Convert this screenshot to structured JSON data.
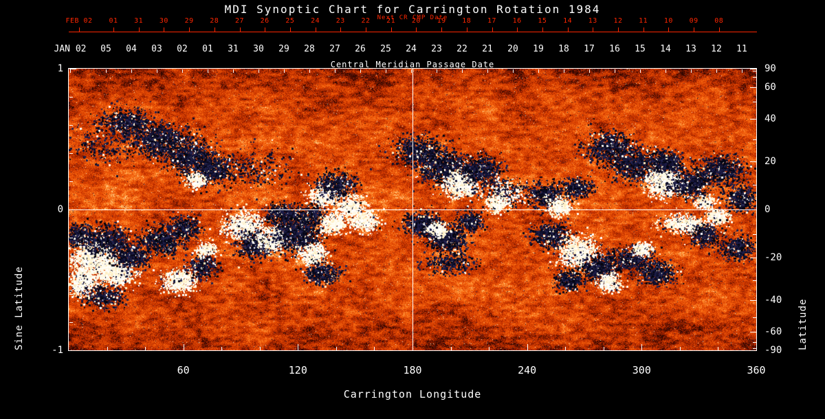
{
  "chart_data": {
    "type": "heatmap",
    "title": "MDI Synoptic Chart for Carrington Rotation 1984",
    "colors": {
      "red_axis": "#ff2600",
      "foreground": "#ffffff",
      "background": "#000000",
      "palette_positive": "#fff0c0",
      "palette_negative": "#101038",
      "palette_quiet": "#e24602"
    },
    "top_axis_red": {
      "label": "Next CR CMP Date",
      "lead": "FEB 02",
      "ticks": [
        "01",
        "31",
        "30",
        "29",
        "28",
        "27",
        "26",
        "25",
        "24",
        "23",
        "22",
        "21",
        "20",
        "19",
        "18",
        "17",
        "16",
        "15",
        "14",
        "13",
        "12",
        "11",
        "10",
        "09",
        "08"
      ]
    },
    "top_axis_white": {
      "label": "Central Meridian Passage Date",
      "lead": "JAN 02",
      "ticks": [
        "05",
        "04",
        "03",
        "02",
        "01",
        "31",
        "30",
        "29",
        "28",
        "27",
        "26",
        "25",
        "24",
        "23",
        "22",
        "21",
        "20",
        "19",
        "18",
        "17",
        "16",
        "15",
        "14",
        "13",
        "12",
        "11"
      ]
    },
    "x_axis": {
      "label": "Carrington Longitude",
      "range": [
        0,
        360
      ],
      "major_ticks": [
        60,
        120,
        180,
        240,
        300,
        360
      ],
      "minor_tick_step": 20
    },
    "y_left": {
      "label": "Sine Latitude",
      "range": [
        -1,
        1
      ],
      "major_ticks": [
        1,
        0,
        -1
      ],
      "minor_ticks": [
        0.8,
        0.6,
        0.4,
        0.2,
        -0.2,
        -0.4,
        -0.6,
        -0.8
      ]
    },
    "y_right": {
      "label": "Latitude",
      "ticks": [
        90,
        60,
        40,
        20,
        0,
        -20,
        -40,
        -60,
        -90
      ],
      "minor_ticks": [
        80,
        70,
        50,
        30,
        10,
        -10,
        -30,
        -50,
        -70,
        -80
      ]
    },
    "crosshair": {
      "lon": 180,
      "sine_lat": 0
    },
    "active_regions": [
      {
        "lon": 30,
        "slat": 0.62,
        "sx": 18,
        "sy": 10,
        "type": "dark",
        "n": 900
      },
      {
        "lon": 47,
        "slat": 0.5,
        "sx": 22,
        "sy": 12,
        "type": "dark",
        "n": 1300
      },
      {
        "lon": 63,
        "slat": 0.38,
        "sx": 20,
        "sy": 12,
        "type": "dark",
        "n": 1200
      },
      {
        "lon": 74,
        "slat": 0.28,
        "sx": 16,
        "sy": 10,
        "type": "dark",
        "n": 850
      },
      {
        "lon": 67,
        "slat": 0.21,
        "sx": 7,
        "sy": 5,
        "type": "light",
        "n": 350
      },
      {
        "lon": 96,
        "slat": 0.3,
        "sx": 26,
        "sy": 14,
        "type": "dark",
        "n": 450
      },
      {
        "lon": 15,
        "slat": 0.45,
        "sx": 22,
        "sy": 14,
        "type": "dark",
        "n": 300
      },
      {
        "lon": 133,
        "slat": 0.1,
        "sx": 10,
        "sy": 8,
        "type": "light",
        "n": 600
      },
      {
        "lon": 147,
        "slat": 0.02,
        "sx": 12,
        "sy": 9,
        "type": "light",
        "n": 700
      },
      {
        "lon": 155,
        "slat": -0.08,
        "sx": 10,
        "sy": 8,
        "type": "light",
        "n": 600
      },
      {
        "lon": 140,
        "slat": 0.18,
        "sx": 14,
        "sy": 9,
        "type": "dark",
        "n": 700
      },
      {
        "lon": 126,
        "slat": -0.04,
        "sx": 10,
        "sy": 7,
        "type": "dark",
        "n": 450
      },
      {
        "lon": 183,
        "slat": 0.42,
        "sx": 16,
        "sy": 10,
        "type": "dark",
        "n": 950
      },
      {
        "lon": 196,
        "slat": 0.3,
        "sx": 20,
        "sy": 13,
        "type": "dark",
        "n": 1500
      },
      {
        "lon": 205,
        "slat": 0.17,
        "sx": 12,
        "sy": 9,
        "type": "light",
        "n": 1000
      },
      {
        "lon": 216,
        "slat": 0.28,
        "sx": 14,
        "sy": 10,
        "type": "dark",
        "n": 900
      },
      {
        "lon": 228,
        "slat": 0.12,
        "sx": 16,
        "sy": 10,
        "type": "mixed",
        "n": 600
      },
      {
        "lon": 224,
        "slat": 0.04,
        "sx": 8,
        "sy": 6,
        "type": "light",
        "n": 400
      },
      {
        "lon": 250,
        "slat": 0.1,
        "sx": 14,
        "sy": 9,
        "type": "dark",
        "n": 750
      },
      {
        "lon": 257,
        "slat": 0.02,
        "sx": 8,
        "sy": 6,
        "type": "light",
        "n": 450
      },
      {
        "lon": 266,
        "slat": 0.16,
        "sx": 10,
        "sy": 7,
        "type": "dark",
        "n": 500
      },
      {
        "lon": 283,
        "slat": 0.45,
        "sx": 18,
        "sy": 11,
        "type": "dark",
        "n": 950
      },
      {
        "lon": 297,
        "slat": 0.32,
        "sx": 20,
        "sy": 12,
        "type": "dark",
        "n": 1250
      },
      {
        "lon": 312,
        "slat": 0.2,
        "sx": 13,
        "sy": 10,
        "type": "light",
        "n": 1300
      },
      {
        "lon": 313,
        "slat": 0.34,
        "sx": 12,
        "sy": 8,
        "type": "dark",
        "n": 700
      },
      {
        "lon": 326,
        "slat": 0.18,
        "sx": 14,
        "sy": 10,
        "type": "dark",
        "n": 950
      },
      {
        "lon": 341,
        "slat": 0.28,
        "sx": 18,
        "sy": 11,
        "type": "dark",
        "n": 1050
      },
      {
        "lon": 352,
        "slat": 0.08,
        "sx": 12,
        "sy": 9,
        "type": "dark",
        "n": 600
      },
      {
        "lon": 333,
        "slat": 0.05,
        "sx": 7,
        "sy": 5,
        "type": "light",
        "n": 300
      },
      {
        "lon": 13,
        "slat": -0.35,
        "sx": 16,
        "sy": 13,
        "type": "light",
        "n": 1600
      },
      {
        "lon": 25,
        "slat": -0.45,
        "sx": 13,
        "sy": 10,
        "type": "light",
        "n": 1000
      },
      {
        "lon": 7,
        "slat": -0.52,
        "sx": 10,
        "sy": 9,
        "type": "light",
        "n": 700
      },
      {
        "lon": 20,
        "slat": -0.22,
        "sx": 16,
        "sy": 10,
        "type": "dark",
        "n": 950
      },
      {
        "lon": 33,
        "slat": -0.33,
        "sx": 12,
        "sy": 9,
        "type": "dark",
        "n": 700
      },
      {
        "lon": 5,
        "slat": -0.18,
        "sx": 10,
        "sy": 8,
        "type": "dark",
        "n": 500
      },
      {
        "lon": 18,
        "slat": -0.62,
        "sx": 14,
        "sy": 8,
        "type": "dark",
        "n": 500
      },
      {
        "lon": 48,
        "slat": -0.22,
        "sx": 14,
        "sy": 10,
        "type": "dark",
        "n": 800
      },
      {
        "lon": 60,
        "slat": -0.13,
        "sx": 12,
        "sy": 9,
        "type": "dark",
        "n": 600
      },
      {
        "lon": 58,
        "slat": -0.5,
        "sx": 13,
        "sy": 8,
        "type": "light",
        "n": 800
      },
      {
        "lon": 70,
        "slat": -0.4,
        "sx": 10,
        "sy": 8,
        "type": "dark",
        "n": 500
      },
      {
        "lon": 72,
        "slat": -0.28,
        "sx": 7,
        "sy": 5,
        "type": "light",
        "n": 300
      },
      {
        "lon": 92,
        "slat": -0.12,
        "sx": 15,
        "sy": 10,
        "type": "light",
        "n": 1000
      },
      {
        "lon": 98,
        "slat": -0.25,
        "sx": 14,
        "sy": 10,
        "type": "dark",
        "n": 900
      },
      {
        "lon": 108,
        "slat": -0.2,
        "sx": 12,
        "sy": 9,
        "type": "light",
        "n": 800
      },
      {
        "lon": 120,
        "slat": -0.18,
        "sx": 16,
        "sy": 12,
        "type": "dark",
        "n": 1350
      },
      {
        "lon": 128,
        "slat": -0.32,
        "sx": 10,
        "sy": 8,
        "type": "light",
        "n": 600
      },
      {
        "lon": 133,
        "slat": -0.45,
        "sx": 12,
        "sy": 8,
        "type": "dark",
        "n": 600
      },
      {
        "lon": 138,
        "slat": -0.1,
        "sx": 9,
        "sy": 7,
        "type": "light",
        "n": 500
      },
      {
        "lon": 112,
        "slat": -0.03,
        "sx": 12,
        "sy": 8,
        "type": "dark",
        "n": 600
      },
      {
        "lon": 185,
        "slat": -0.1,
        "sx": 14,
        "sy": 9,
        "type": "dark",
        "n": 900
      },
      {
        "lon": 198,
        "slat": -0.2,
        "sx": 15,
        "sy": 10,
        "type": "dark",
        "n": 1000
      },
      {
        "lon": 193,
        "slat": -0.14,
        "sx": 7,
        "sy": 5,
        "type": "light",
        "n": 350
      },
      {
        "lon": 210,
        "slat": -0.08,
        "sx": 10,
        "sy": 7,
        "type": "dark",
        "n": 500
      },
      {
        "lon": 200,
        "slat": -0.38,
        "sx": 18,
        "sy": 8,
        "type": "dark",
        "n": 420
      },
      {
        "lon": 252,
        "slat": -0.18,
        "sx": 13,
        "sy": 9,
        "type": "dark",
        "n": 800
      },
      {
        "lon": 267,
        "slat": -0.3,
        "sx": 14,
        "sy": 11,
        "type": "light",
        "n": 1250
      },
      {
        "lon": 278,
        "slat": -0.42,
        "sx": 13,
        "sy": 9,
        "type": "dark",
        "n": 800
      },
      {
        "lon": 283,
        "slat": -0.52,
        "sx": 9,
        "sy": 7,
        "type": "light",
        "n": 450
      },
      {
        "lon": 262,
        "slat": -0.5,
        "sx": 10,
        "sy": 7,
        "type": "dark",
        "n": 500
      },
      {
        "lon": 295,
        "slat": -0.35,
        "sx": 16,
        "sy": 9,
        "type": "dark",
        "n": 800
      },
      {
        "lon": 308,
        "slat": -0.45,
        "sx": 14,
        "sy": 8,
        "type": "dark",
        "n": 700
      },
      {
        "lon": 300,
        "slat": -0.28,
        "sx": 7,
        "sy": 5,
        "type": "light",
        "n": 300
      },
      {
        "lon": 322,
        "slat": -0.1,
        "sx": 16,
        "sy": 6,
        "type": "light",
        "n": 800
      },
      {
        "lon": 333,
        "slat": -0.18,
        "sx": 12,
        "sy": 8,
        "type": "dark",
        "n": 600
      },
      {
        "lon": 340,
        "slat": -0.05,
        "sx": 9,
        "sy": 6,
        "type": "light",
        "n": 400
      },
      {
        "lon": 350,
        "slat": -0.28,
        "sx": 12,
        "sy": 9,
        "type": "dark",
        "n": 550
      }
    ]
  }
}
